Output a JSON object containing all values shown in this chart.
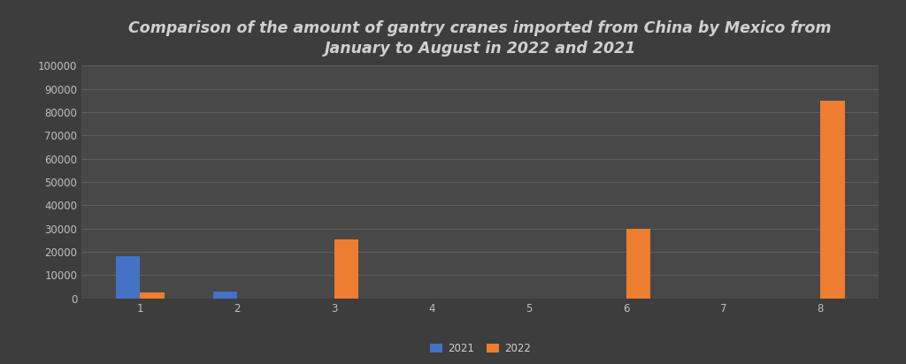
{
  "title": "Comparison of the amount of gantry cranes imported from China by Mexico from\nJanuary to August in 2022 and 2021",
  "months": [
    1,
    2,
    3,
    4,
    5,
    6,
    7,
    8
  ],
  "values_2021": [
    18000,
    3000,
    0,
    0,
    0,
    0,
    0,
    0
  ],
  "values_2022": [
    2500,
    0,
    25500,
    0,
    0,
    30000,
    0,
    85000
  ],
  "color_2021": "#4472C4",
  "color_2022": "#ED7D31",
  "background_color": "#3d3d3d",
  "axes_facecolor": "#484848",
  "grid_color": "#777777",
  "text_color": "#d0d0d0",
  "tick_color": "#c0c0c0",
  "ylim": [
    0,
    100000
  ],
  "yticks": [
    0,
    10000,
    20000,
    30000,
    40000,
    50000,
    60000,
    70000,
    80000,
    90000,
    100000
  ],
  "legend_labels": [
    "2021",
    "2022"
  ],
  "bar_width": 0.25,
  "title_fontsize": 12.5,
  "legend_fontsize": 8.5,
  "tick_fontsize": 8.5
}
